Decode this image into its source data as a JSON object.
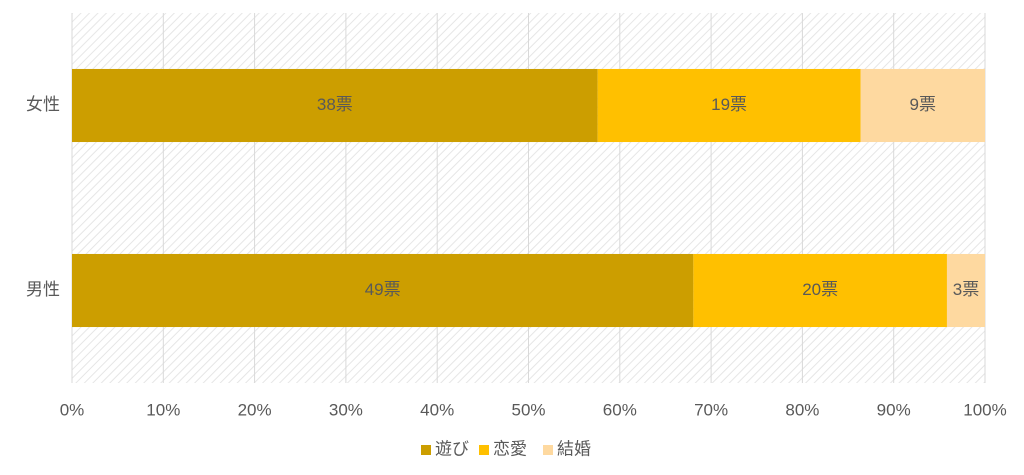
{
  "chart_data": {
    "type": "bar",
    "orientation": "horizontal",
    "stacking": "percent",
    "categories": [
      "女性",
      "男性"
    ],
    "series": [
      {
        "name": "遊び",
        "color": "#cc9e00",
        "values": [
          38,
          49
        ],
        "value_labels": [
          "38票",
          "49票"
        ]
      },
      {
        "name": "恋愛",
        "color": "#ffc000",
        "values": [
          19,
          20
        ],
        "value_labels": [
          "19票",
          "20票"
        ]
      },
      {
        "name": "結婚",
        "color": "#fed9a0",
        "values": [
          9,
          3
        ],
        "value_labels": [
          "9票",
          "3票"
        ]
      }
    ],
    "xlim": [
      0,
      100
    ],
    "xticks": [
      {
        "value": 0,
        "label": "0%"
      },
      {
        "value": 10,
        "label": "10%"
      },
      {
        "value": 20,
        "label": "20%"
      },
      {
        "value": 30,
        "label": "30%"
      },
      {
        "value": 40,
        "label": "40%"
      },
      {
        "value": 50,
        "label": "50%"
      },
      {
        "value": 60,
        "label": "60%"
      },
      {
        "value": 70,
        "label": "70%"
      },
      {
        "value": 80,
        "label": "80%"
      },
      {
        "value": 90,
        "label": "90%"
      },
      {
        "value": 100,
        "label": "100%"
      }
    ],
    "grid": true,
    "legend": "bottom"
  }
}
